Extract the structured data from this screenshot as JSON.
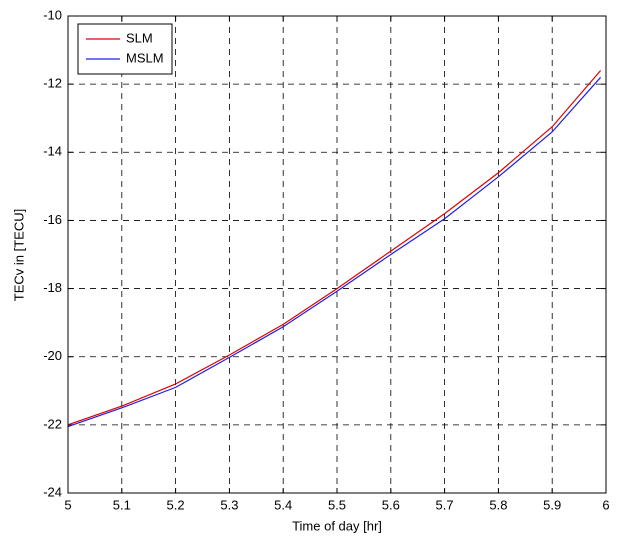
{
  "chart_data": {
    "type": "line",
    "xlabel": "Time of day  [hr]",
    "ylabel": "TECv in [TECU]",
    "x": [
      5,
      5.1,
      5.2,
      5.3,
      5.4,
      5.5,
      5.6,
      5.7,
      5.8,
      5.9,
      5.99
    ],
    "series": [
      {
        "name": "SLM",
        "color": "#e00000",
        "values": [
          -22.0,
          -21.45,
          -20.8,
          -19.95,
          -19.05,
          -18.0,
          -16.9,
          -15.8,
          -14.6,
          -13.25,
          -11.6
        ]
      },
      {
        "name": "MSLM",
        "color": "#2020e0",
        "values": [
          -22.05,
          -21.5,
          -20.9,
          -20.02,
          -19.12,
          -18.08,
          -17.0,
          -15.95,
          -14.72,
          -13.4,
          -11.8
        ]
      }
    ],
    "xlim": [
      5,
      6
    ],
    "xticks": [
      5,
      5.1,
      5.2,
      5.3,
      5.4,
      5.5,
      5.6,
      5.7,
      5.8,
      5.9,
      6
    ],
    "ylim": [
      -24,
      -10
    ],
    "yticks": [
      -24,
      -22,
      -20,
      -18,
      -16,
      -14,
      -12,
      -10
    ],
    "grid": true,
    "legend": "top-left"
  }
}
